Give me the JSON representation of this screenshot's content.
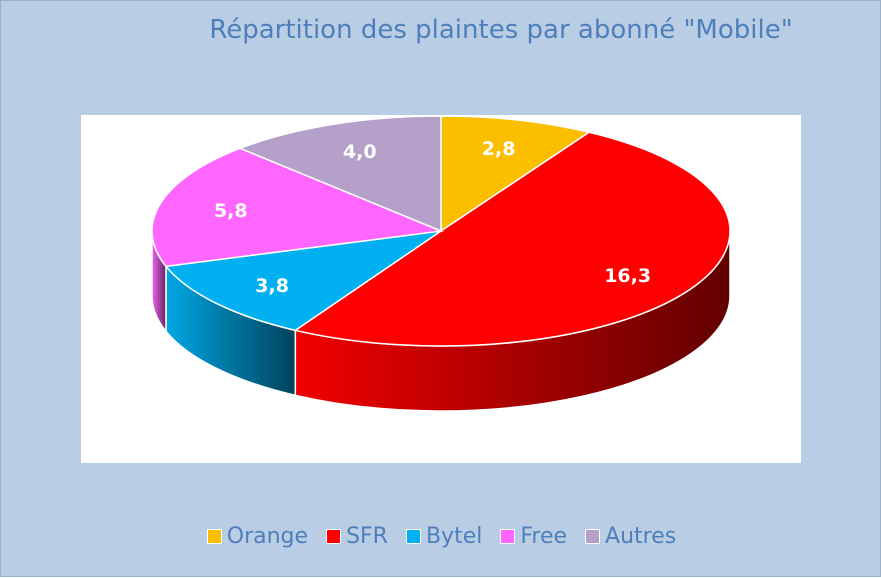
{
  "chart_data": {
    "type": "pie",
    "title": "Répartition des plaintes par abonné \"Mobile\"",
    "categories": [
      "Orange",
      "SFR",
      "Bytel",
      "Free",
      "Autres"
    ],
    "values": [
      2.8,
      16.3,
      3.8,
      5.8,
      4.0
    ],
    "value_labels": [
      "2,8",
      "16,3",
      "3,8",
      "5,8",
      "4,0"
    ],
    "colors": [
      "#fbbf00",
      "#ff0000",
      "#00b0f0",
      "#ff66ff",
      "#b4a0c8"
    ],
    "style": "3d",
    "legend_position": "bottom"
  }
}
